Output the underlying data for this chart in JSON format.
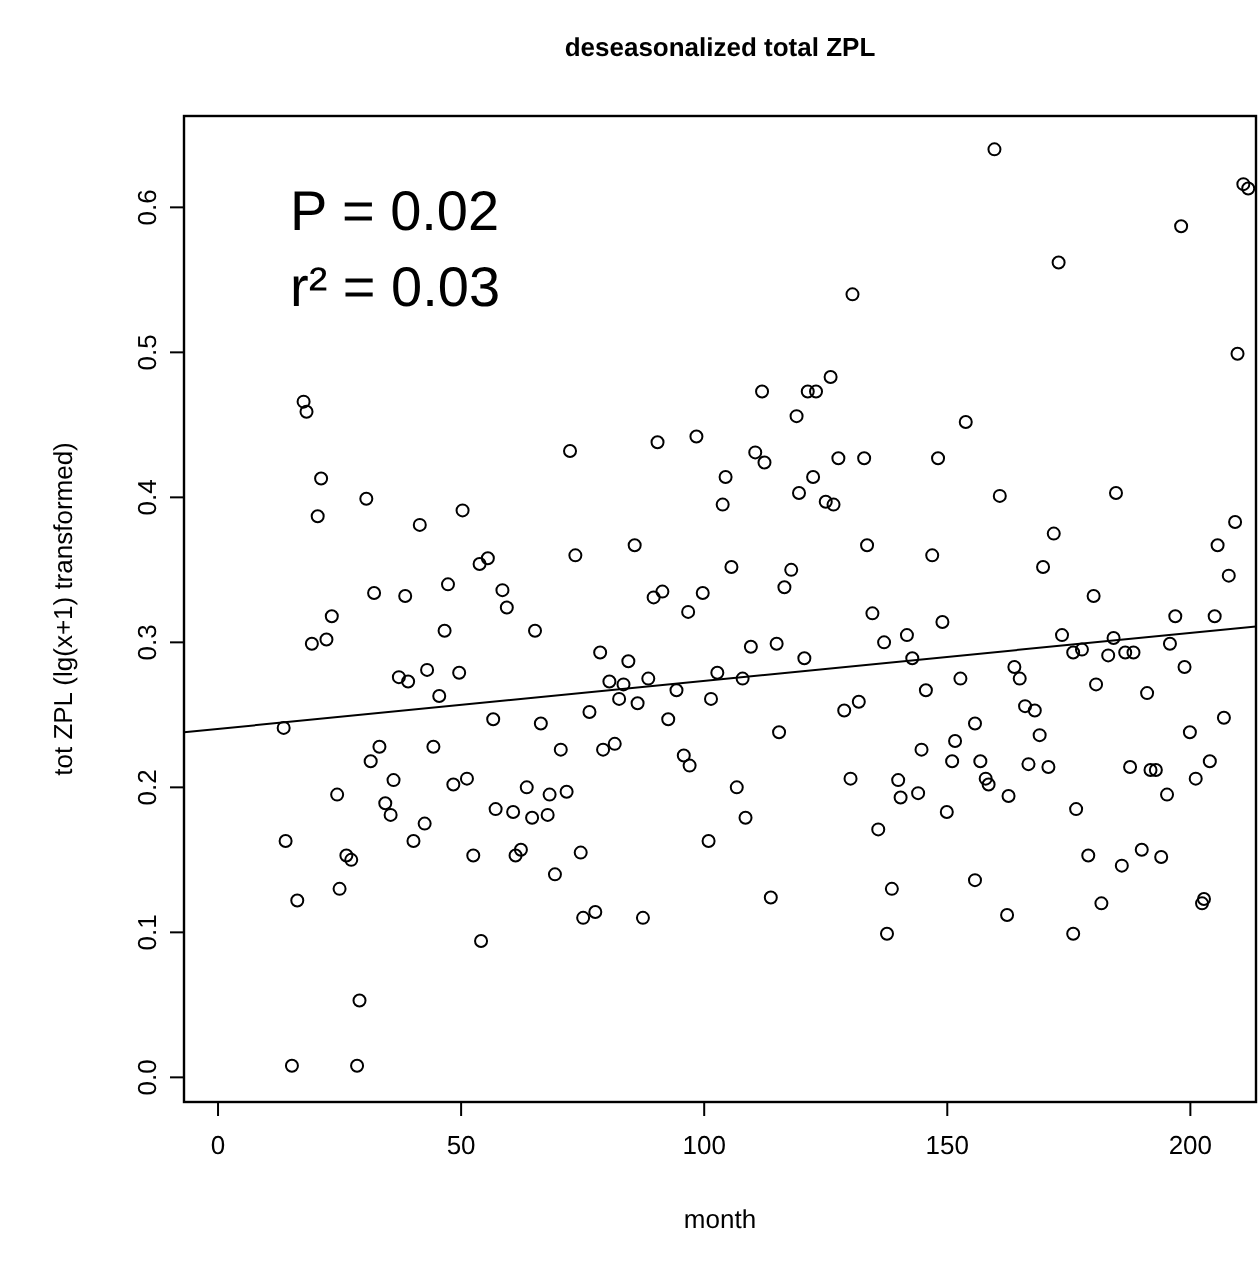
{
  "chart_data": {
    "type": "scatter",
    "title": "deseasonalized total ZPL",
    "xlabel": "month",
    "ylabel": "tot ZPL (lg(x+1) transformed)",
    "annotations": [
      "P = 0.02",
      "r² = 0.03"
    ],
    "xlim": [
      -7,
      213.5
    ],
    "ylim": [
      -0.017,
      0.663
    ],
    "xticks": [
      0,
      50,
      100,
      150,
      200
    ],
    "yticks": [
      {
        "value": 0,
        "label": "0.0"
      },
      {
        "value": 0.1,
        "label": "0.1"
      },
      {
        "value": 0.2,
        "label": "0.2"
      },
      {
        "value": 0.3,
        "label": "0.3"
      },
      {
        "value": 0.4,
        "label": "0.4"
      },
      {
        "value": 0.5,
        "label": "0.5"
      },
      {
        "value": 0.6,
        "label": "0.6"
      }
    ],
    "grid": false,
    "marker": "circle",
    "series": [
      {
        "color": "#000000",
        "x": [
          13.5,
          13.9,
          16.3,
          15.2,
          28.6,
          29.1,
          19.3,
          22.3,
          23.4,
          24.5,
          25,
          26.4,
          27.4,
          31.4,
          33.2,
          36.1,
          34.4,
          35.5,
          37.2,
          39.1,
          40.2,
          42.5,
          43,
          45.5,
          44.3,
          46.6,
          49.6,
          48.4,
          51.2,
          52.5,
          54.1,
          56.6,
          57.1,
          59.4,
          60.7,
          61.2,
          62.3,
          63.5,
          64.6,
          65.2,
          66.4,
          67.8,
          68.2,
          70.5,
          71.7,
          69.3,
          74.6,
          75.1,
          77.6,
          76.4,
          78.6,
          79.2,
          81.6,
          80.5,
          82.5,
          83.4,
          84.4,
          86.3,
          87.4,
          88.5,
          92.6,
          94.3,
          95.8,
          97,
          89.6,
          91.4,
          96.7,
          17.6,
          18.2,
          21.2,
          20.5,
          30.5,
          41.5,
          50.3,
          72.4,
          73.5,
          85.7,
          90.4,
          98.4,
          53.8,
          55.5,
          58.5,
          32.1,
          38.5,
          47.3,
          159.7,
          210.9,
          211.9,
          198.1,
          172.9,
          130.5,
          209.7,
          126,
          111.9,
          121.3,
          123,
          119,
          153.8,
          110.5,
          112.4,
          127.6,
          132.9,
          148.1,
          104.4,
          122.4,
          119.5,
          125,
          126.6,
          103.8,
          160.8,
          184.7,
          171.9,
          133.5,
          146.9,
          169.7,
          209.2,
          205.6,
          207.9,
          180.1,
          105.6,
          117.9,
          116.5,
          99.7,
          134.6,
          149,
          196.9,
          205,
          109.6,
          114.9,
          120.6,
          102.7,
          107.9,
          101.4,
          115.4,
          106.7,
          108.5,
          100.9,
          113.7,
          137,
          141.7,
          142.8,
          145.6,
          152.7,
          128.8,
          131.8,
          130.1,
          135.8,
          138.6,
          137.6,
          139.9,
          140.4,
          144,
          144.7,
          149.9,
          151,
          151.6,
          155.7,
          156.8,
          157.9,
          158.5,
          155.7,
          162.3,
          162.6,
          163.8,
          164.9,
          166,
          168,
          169,
          166.7,
          170.8,
          173.6,
          175.9,
          177.7,
          180.6,
          176.5,
          179,
          175.9,
          181.7,
          183.1,
          184.2,
          186.6,
          188.3,
          185.9,
          190,
          187.6,
          191.8,
          192.9,
          191.1,
          194,
          195.8,
          198.8,
          195.2,
          199.9,
          201.1,
          204,
          206.9,
          202.4,
          202.8
        ],
        "values": [
          0.241,
          0.163,
          0.122,
          0.008,
          0.008,
          0.053,
          0.299,
          0.302,
          0.318,
          0.195,
          0.13,
          0.153,
          0.15,
          0.218,
          0.228,
          0.205,
          0.189,
          0.181,
          0.276,
          0.273,
          0.163,
          0.175,
          0.281,
          0.263,
          0.228,
          0.308,
          0.279,
          0.202,
          0.206,
          0.153,
          0.094,
          0.247,
          0.185,
          0.324,
          0.183,
          0.153,
          0.157,
          0.2,
          0.179,
          0.308,
          0.244,
          0.181,
          0.195,
          0.226,
          0.197,
          0.14,
          0.155,
          0.11,
          0.114,
          0.252,
          0.293,
          0.226,
          0.23,
          0.273,
          0.261,
          0.271,
          0.287,
          0.258,
          0.11,
          0.275,
          0.247,
          0.267,
          0.222,
          0.215,
          0.331,
          0.335,
          0.321,
          0.466,
          0.459,
          0.413,
          0.387,
          0.399,
          0.381,
          0.391,
          0.432,
          0.36,
          0.367,
          0.438,
          0.442,
          0.354,
          0.358,
          0.336,
          0.334,
          0.332,
          0.34,
          0.64,
          0.616,
          0.613,
          0.587,
          0.562,
          0.54,
          0.499,
          0.483,
          0.473,
          0.473,
          0.473,
          0.456,
          0.452,
          0.431,
          0.424,
          0.427,
          0.427,
          0.427,
          0.414,
          0.414,
          0.403,
          0.397,
          0.395,
          0.395,
          0.401,
          0.403,
          0.375,
          0.367,
          0.36,
          0.352,
          0.383,
          0.367,
          0.346,
          0.332,
          0.352,
          0.35,
          0.338,
          0.334,
          0.32,
          0.314,
          0.318,
          0.318,
          0.297,
          0.299,
          0.289,
          0.279,
          0.275,
          0.261,
          0.238,
          0.2,
          0.179,
          0.163,
          0.124,
          0.3,
          0.305,
          0.289,
          0.267,
          0.275,
          0.253,
          0.259,
          0.206,
          0.171,
          0.13,
          0.099,
          0.205,
          0.193,
          0.196,
          0.226,
          0.183,
          0.218,
          0.232,
          0.244,
          0.218,
          0.206,
          0.202,
          0.136,
          0.112,
          0.194,
          0.283,
          0.275,
          0.256,
          0.253,
          0.236,
          0.216,
          0.214,
          0.305,
          0.293,
          0.295,
          0.271,
          0.185,
          0.153,
          0.099,
          0.12,
          0.291,
          0.303,
          0.293,
          0.293,
          0.146,
          0.157,
          0.214,
          0.212,
          0.212,
          0.265,
          0.152,
          0.299,
          0.283,
          0.195,
          0.238,
          0.206,
          0.218,
          0.248,
          0.12,
          0.123
        ]
      },
      {
        "type": "line",
        "color": "#000000",
        "marker": "none",
        "line_style": "solid",
        "x": [
          -7,
          213.5
        ],
        "values": [
          0.238,
          0.311
        ]
      }
    ]
  }
}
